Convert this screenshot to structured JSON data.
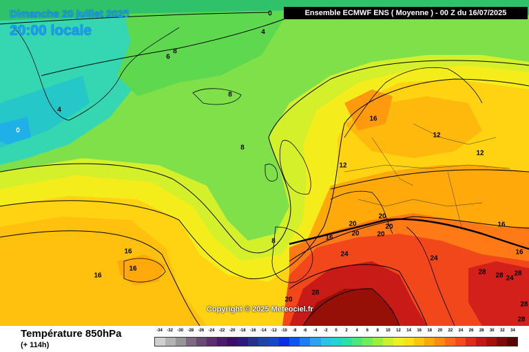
{
  "map": {
    "date": "Dimanche 20 juillet 2025",
    "time": "20:00 locale",
    "header": "Ensemble ECMWF ENS  ( Moyenne )  -  00 Z du 16/07/2025",
    "copyright": "Copyright © 2025 Meteociel.fr",
    "contour_labels": [
      "0",
      "4",
      "8",
      "6",
      "0",
      "4",
      "8",
      "8",
      "16",
      "12",
      "12",
      "12",
      "8",
      "16",
      "16",
      "16",
      "16",
      "20",
      "20",
      "20",
      "20",
      "20",
      "24",
      "24",
      "28",
      "28",
      "28",
      "28",
      "24",
      "28",
      "28",
      "16",
      "20",
      "16"
    ]
  },
  "footer": {
    "title": "Température 850hPa",
    "subtitle": "(+ 114h)"
  },
  "legend": {
    "labels": [
      "-34",
      "-32",
      "-30",
      "-28",
      "-26",
      "-24",
      "-22",
      "-20",
      "-18",
      "-16",
      "-14",
      "-12",
      "-10",
      "-8",
      "-6",
      "-4",
      "-2",
      "0",
      "2",
      "4",
      "6",
      "8",
      "10",
      "12",
      "14",
      "16",
      "18",
      "20",
      "22",
      "24",
      "26",
      "28",
      "30",
      "32",
      "34"
    ],
    "colors": [
      "#cfcfcf",
      "#b2b2b2",
      "#969696",
      "#7d6a82",
      "#6a4a73",
      "#5c2e6e",
      "#4b1b6a",
      "#3c0e66",
      "#2d1a80",
      "#25328f",
      "#1d44a8",
      "#1646c9",
      "#0a2ee6",
      "#0a57f5",
      "#1f7df7",
      "#2aa2f0",
      "#2cc3e6",
      "#20d6cc",
      "#2ee0a6",
      "#4be87e",
      "#70ee57",
      "#9af03a",
      "#c8f22d",
      "#f0f01e",
      "#ffe010",
      "#ffc60c",
      "#ffa80a",
      "#ff8a10",
      "#ff6a18",
      "#f44a1c",
      "#e02a1a",
      "#c41818",
      "#a3100e",
      "#7e0a08",
      "#5a0504"
    ]
  }
}
